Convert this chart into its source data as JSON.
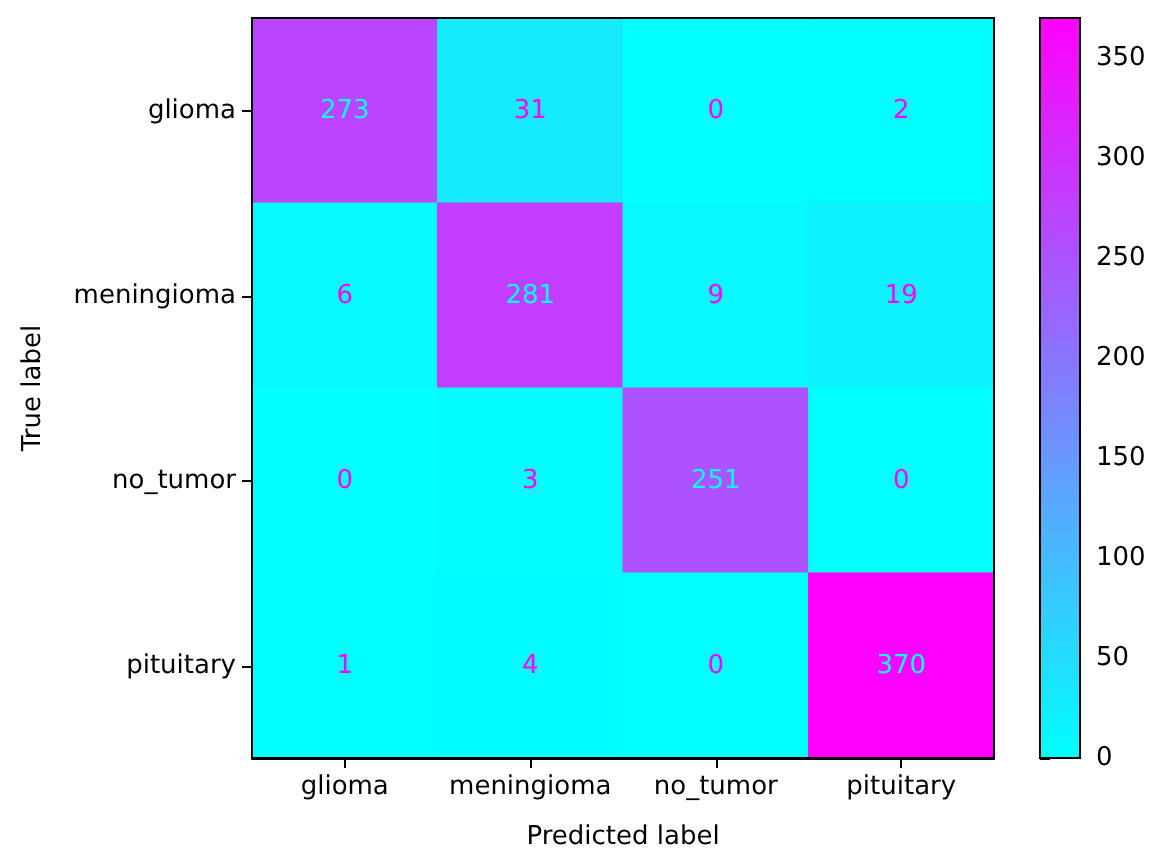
{
  "chart_data": {
    "type": "heatmap",
    "xlabel": "Predicted label",
    "ylabel": "True label",
    "categories": [
      "glioma",
      "meningioma",
      "no_tumor",
      "pituitary"
    ],
    "y_categories": [
      "glioma",
      "meningioma",
      "no_tumor",
      "pituitary"
    ],
    "cells": [
      [
        273,
        31,
        0,
        2
      ],
      [
        6,
        281,
        9,
        19
      ],
      [
        0,
        3,
        251,
        0
      ],
      [
        1,
        4,
        0,
        370
      ]
    ],
    "clim": [
      0,
      370
    ],
    "cticks": [
      0,
      50,
      100,
      150,
      200,
      250,
      300,
      350
    ],
    "colors": [
      "#00ffff",
      "#ff00ff"
    ],
    "data_labels": true
  }
}
